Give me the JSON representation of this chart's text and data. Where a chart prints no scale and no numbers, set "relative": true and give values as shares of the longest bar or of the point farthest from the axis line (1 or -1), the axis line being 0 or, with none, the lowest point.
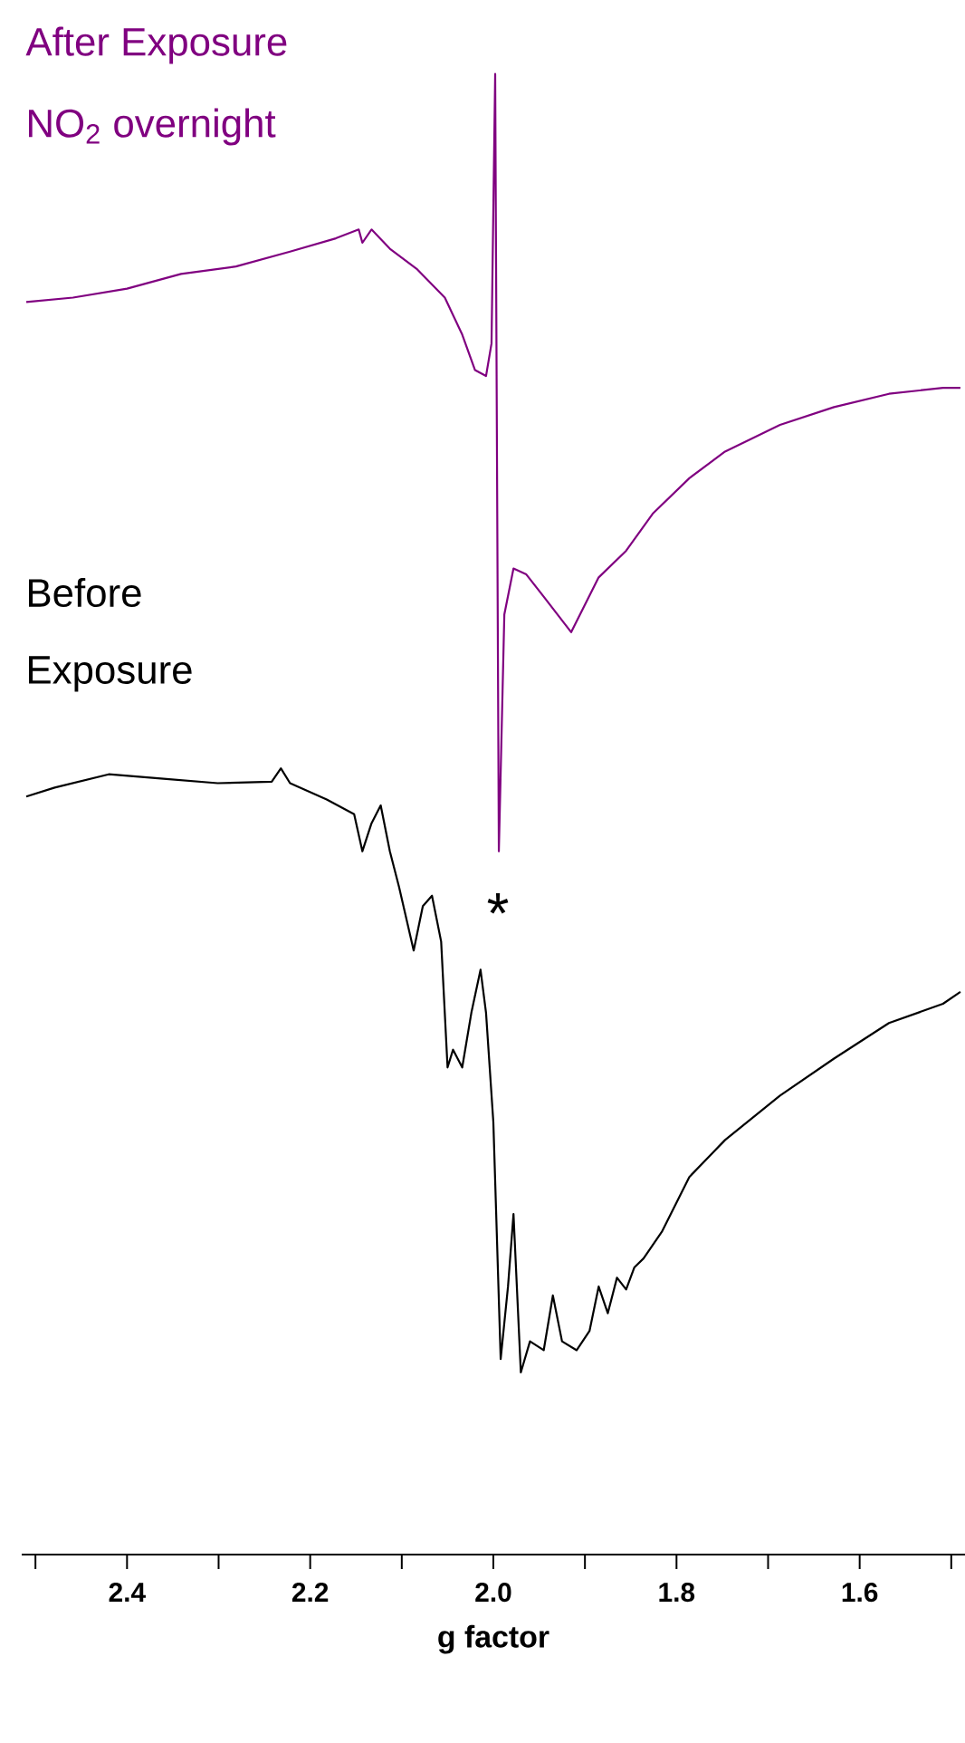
{
  "chart_data": {
    "type": "line",
    "relative": true,
    "xlabel": "g factor",
    "xlim": [
      2.515,
      1.485
    ],
    "xticks": [
      {
        "value": 2.5,
        "label": null
      },
      2.4,
      {
        "value": 2.3,
        "label": null
      },
      2.2,
      {
        "value": 2.1,
        "label": null
      },
      {
        "value": 2.0,
        "label": "2.0"
      },
      {
        "value": 1.9,
        "label": null
      },
      1.8,
      {
        "value": 1.7,
        "label": null
      },
      1.6,
      {
        "value": 1.5,
        "label": null
      }
    ],
    "annotations": [
      "After Exposure",
      "NO$_{2}$ overnight",
      "Before",
      "Exposure",
      "*"
    ],
    "series": [
      {
        "color": "#800080",
        "x": [
          2.51,
          2.459,
          2.4,
          2.341,
          2.281,
          2.222,
          2.172,
          2.147,
          2.143,
          2.133,
          2.113,
          2.083,
          2.053,
          2.034,
          2.02,
          2.008,
          2.002,
          1.998,
          1.994,
          1.988,
          1.978,
          1.964,
          1.945,
          1.915,
          1.885,
          1.855,
          1.826,
          1.786,
          1.747,
          1.687,
          1.628,
          1.568,
          1.509,
          1.49
        ],
        "values": [
          0.846,
          0.849,
          0.855,
          0.865,
          0.87,
          0.88,
          0.889,
          0.895,
          0.886,
          0.895,
          0.882,
          0.868,
          0.849,
          0.824,
          0.8,
          0.796,
          0.818,
          1.0,
          0.475,
          0.635,
          0.666,
          0.662,
          0.647,
          0.623,
          0.66,
          0.678,
          0.703,
          0.727,
          0.745,
          0.763,
          0.775,
          0.784,
          0.788,
          0.788
        ]
      },
      {
        "color": "#000000",
        "x": [
          2.51,
          2.479,
          2.42,
          2.36,
          2.301,
          2.242,
          2.232,
          2.222,
          2.182,
          2.152,
          2.143,
          2.133,
          2.123,
          2.113,
          2.103,
          2.087,
          2.077,
          2.067,
          2.057,
          2.05,
          2.044,
          2.034,
          2.024,
          2.014,
          2.008,
          2.0,
          1.992,
          1.984,
          1.978,
          1.97,
          1.96,
          1.945,
          1.935,
          1.925,
          1.909,
          1.895,
          1.885,
          1.875,
          1.865,
          1.855,
          1.846,
          1.836,
          1.816,
          1.786,
          1.747,
          1.687,
          1.628,
          1.568,
          1.509,
          1.49
        ],
        "values": [
          0.512,
          0.518,
          0.527,
          0.524,
          0.521,
          0.522,
          0.531,
          0.521,
          0.51,
          0.5,
          0.475,
          0.494,
          0.506,
          0.475,
          0.451,
          0.408,
          0.438,
          0.445,
          0.414,
          0.329,
          0.341,
          0.329,
          0.366,
          0.395,
          0.366,
          0.292,
          0.132,
          0.181,
          0.23,
          0.123,
          0.144,
          0.138,
          0.175,
          0.144,
          0.138,
          0.151,
          0.181,
          0.163,
          0.187,
          0.179,
          0.194,
          0.2,
          0.218,
          0.255,
          0.28,
          0.31,
          0.335,
          0.359,
          0.372,
          0.38
        ]
      }
    ]
  }
}
